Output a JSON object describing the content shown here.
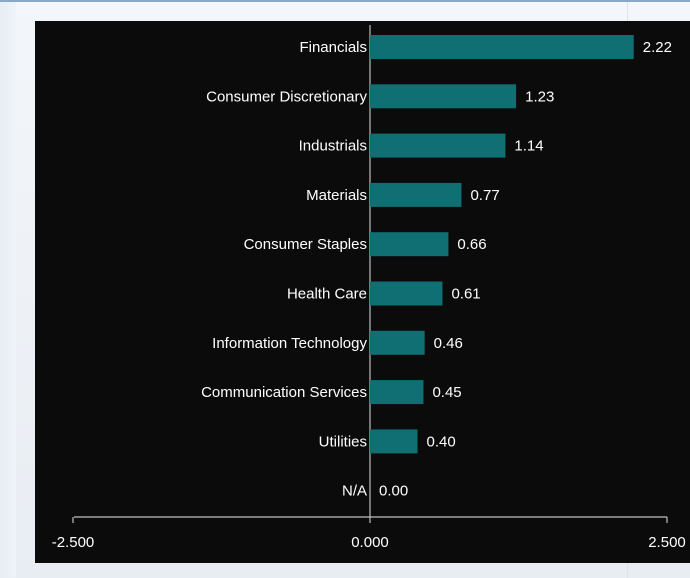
{
  "chart_data": {
    "type": "bar",
    "orientation": "horizontal",
    "categories": [
      "Financials",
      "Consumer Discretionary",
      "Industrials",
      "Materials",
      "Consumer Staples",
      "Health Care",
      "Information Technology",
      "Communication Services",
      "Utilities",
      "N/A"
    ],
    "values": [
      2.22,
      1.23,
      1.14,
      0.77,
      0.66,
      0.61,
      0.46,
      0.45,
      0.4,
      0.0
    ],
    "value_labels": [
      "2.22",
      "1.23",
      "1.14",
      "0.77",
      "0.66",
      "0.61",
      "0.46",
      "0.45",
      "0.40",
      "0.00"
    ],
    "xlim": [
      -2.5,
      2.5
    ],
    "x_ticks": [
      -2.5,
      0,
      2.5
    ],
    "x_tick_labels": [
      "-2.500",
      "0.000",
      "2.500"
    ],
    "grid": false,
    "colors": {
      "panel_background": "#0b0b0b",
      "bar": "#0f6f73",
      "axis": "#bfbfbf",
      "text": "#ffffff"
    }
  }
}
